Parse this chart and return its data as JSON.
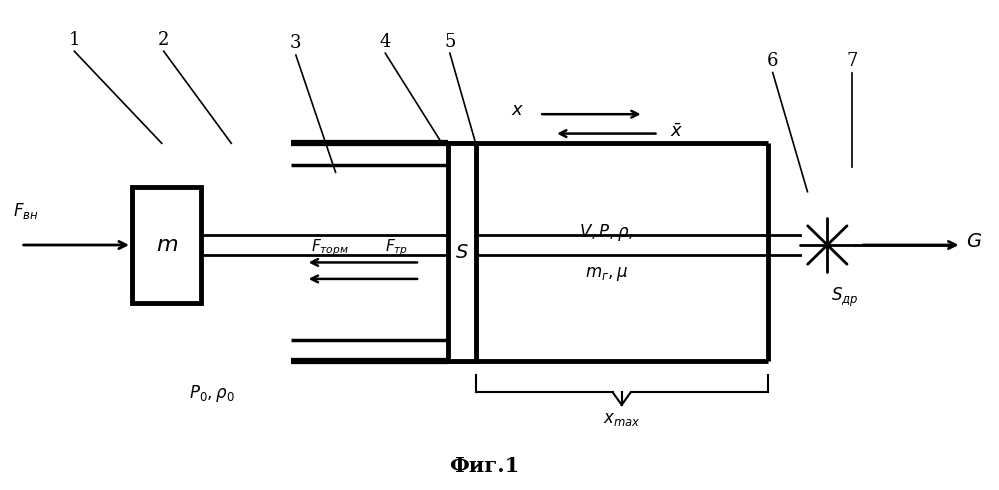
{
  "title": "Фиг.1",
  "bg_color": "#ffffff",
  "line_color": "#000000",
  "fig_width": 9.99,
  "fig_height": 4.9,
  "labels": {
    "F_vn": "$F_{\\mathregular{вн}}$",
    "m": "$m$",
    "F_torm": "$F_{\\mathregular{торм}}$",
    "F_tr": "$F_{\\mathregular{тр}}$",
    "S": "$S$",
    "V_P_rho": "$V, P, \\rho,$",
    "m_g_mu": "$m_{\\mathregular{г}}, \\mu$",
    "P0_rho0": "$P_0, \\rho_0$",
    "x_max": "$x_{\\mathregular{max}}$",
    "S_dr": "$S_{\\mathregular{др}}$",
    "G": "$G$"
  }
}
